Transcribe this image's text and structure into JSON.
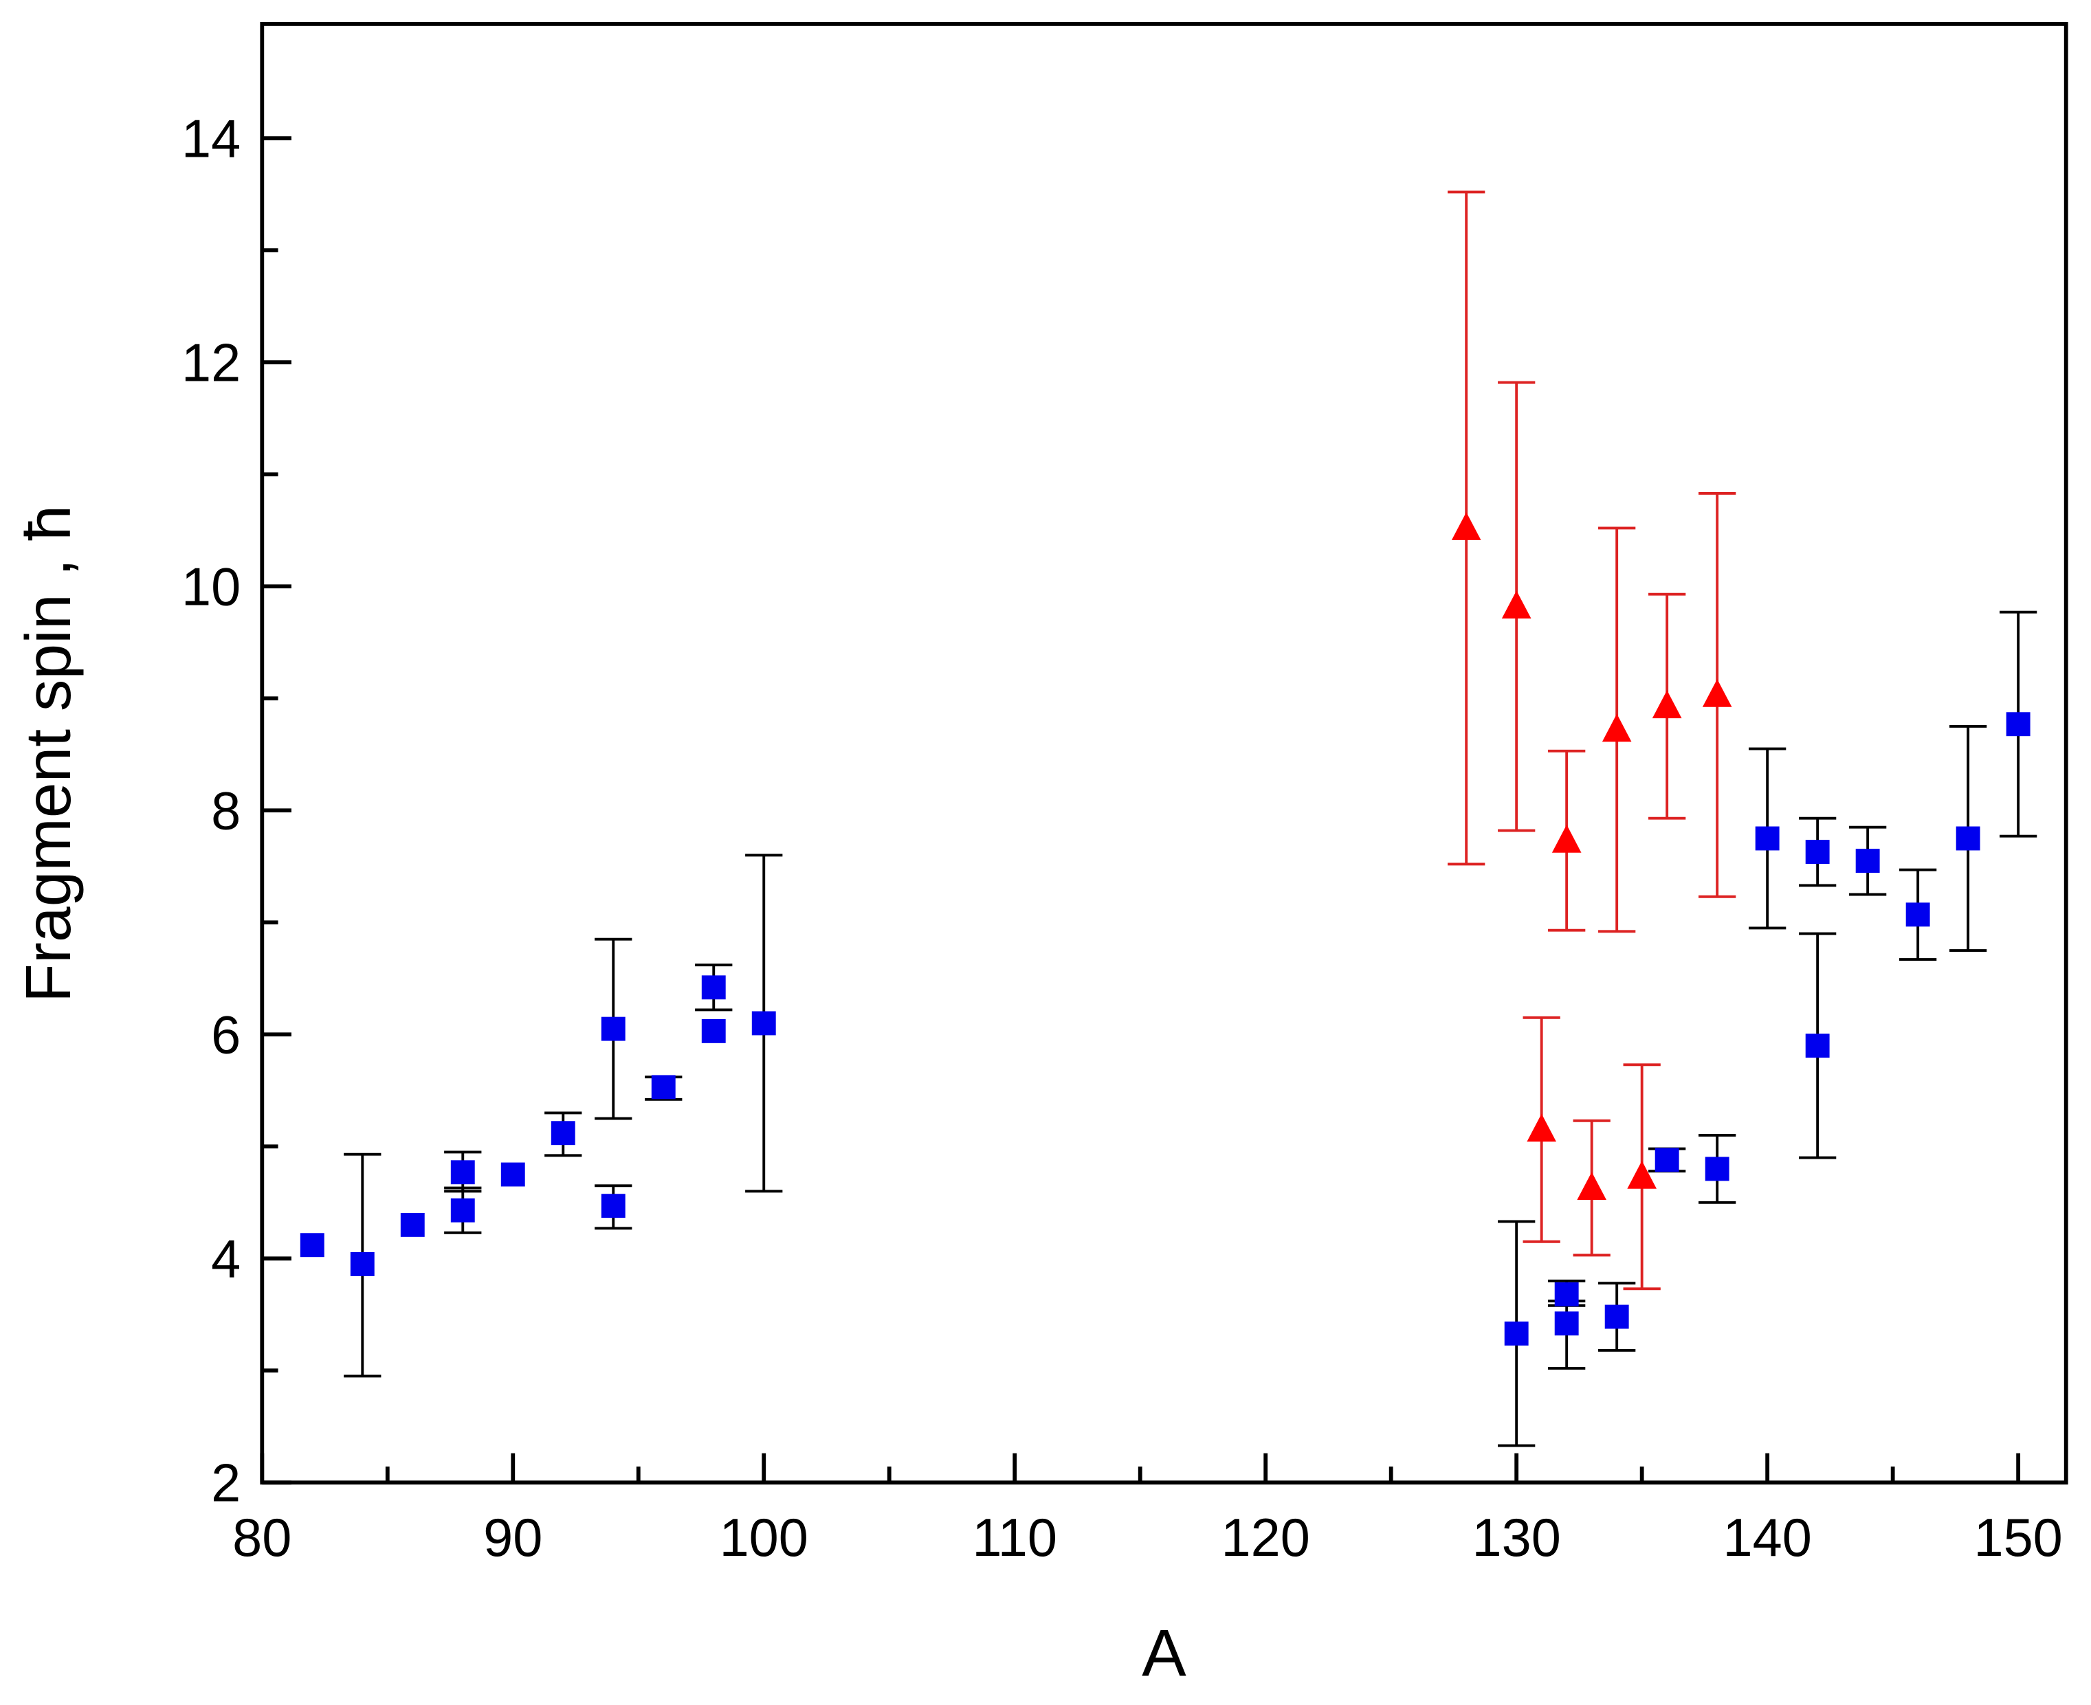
{
  "chart_data": {
    "type": "scatter",
    "title": "",
    "xlabel": "A",
    "ylabel": "Fragment spin , ħ",
    "xlim": [
      80,
      152
    ],
    "ylim": [
      2,
      15
    ],
    "xticks": [
      "80",
      "90",
      "100",
      "110",
      "120",
      "130",
      "140",
      "150"
    ],
    "yticks": [
      "2",
      "4",
      "6",
      "8",
      "10",
      "12",
      "14"
    ],
    "grid": false,
    "legend": "none",
    "series": [
      {
        "marker": "square",
        "color": "#0000ee",
        "errorbar_color": "#000000",
        "points": [
          {
            "x": 82,
            "y": 4.12
          },
          {
            "x": 84,
            "y": 3.95,
            "lo": 2.95,
            "hi": 4.93
          },
          {
            "x": 86,
            "y": 4.3
          },
          {
            "x": 88,
            "y": 4.77,
            "lo": 4.6,
            "hi": 4.95
          },
          {
            "x": 88,
            "y": 4.43,
            "lo": 4.23,
            "hi": 4.63
          },
          {
            "x": 90,
            "y": 4.75
          },
          {
            "x": 92,
            "y": 5.12,
            "lo": 4.92,
            "hi": 5.3
          },
          {
            "x": 94,
            "y": 6.05,
            "lo": 5.25,
            "hi": 6.85
          },
          {
            "x": 94,
            "y": 4.47,
            "lo": 4.27,
            "hi": 4.65
          },
          {
            "x": 96,
            "y": 5.53,
            "lo": 5.42,
            "hi": 5.62
          },
          {
            "x": 98,
            "y": 6.42,
            "lo": 6.22,
            "hi": 6.62
          },
          {
            "x": 98,
            "y": 6.03
          },
          {
            "x": 100,
            "y": 6.1,
            "lo": 4.6,
            "hi": 7.6
          },
          {
            "x": 130,
            "y": 3.33,
            "lo": 2.33,
            "hi": 4.33
          },
          {
            "x": 132,
            "y": 3.68,
            "lo": 3.58,
            "hi": 3.8
          },
          {
            "x": 132,
            "y": 3.42,
            "lo": 3.02,
            "hi": 3.62
          },
          {
            "x": 134,
            "y": 3.48,
            "lo": 3.18,
            "hi": 3.78
          },
          {
            "x": 136,
            "y": 4.88,
            "lo": 4.78,
            "hi": 4.98
          },
          {
            "x": 138,
            "y": 4.8,
            "lo": 4.5,
            "hi": 5.1
          },
          {
            "x": 140,
            "y": 7.75,
            "lo": 6.95,
            "hi": 8.55
          },
          {
            "x": 142,
            "y": 7.63,
            "lo": 7.33,
            "hi": 7.93
          },
          {
            "x": 142,
            "y": 5.9,
            "lo": 4.9,
            "hi": 6.9
          },
          {
            "x": 144,
            "y": 7.55,
            "lo": 7.25,
            "hi": 7.85
          },
          {
            "x": 146,
            "y": 7.07,
            "lo": 6.67,
            "hi": 7.47
          },
          {
            "x": 148,
            "y": 7.75,
            "lo": 6.75,
            "hi": 8.75
          },
          {
            "x": 150,
            "y": 8.77,
            "lo": 7.77,
            "hi": 9.77
          }
        ]
      },
      {
        "marker": "triangle",
        "color": "#ff0000",
        "errorbar_color": "#dd2222",
        "points": [
          {
            "x": 128,
            "y": 10.52,
            "lo": 7.52,
            "hi": 13.52
          },
          {
            "x": 130,
            "y": 9.82,
            "lo": 7.82,
            "hi": 11.82
          },
          {
            "x": 132,
            "y": 7.73,
            "lo": 6.93,
            "hi": 8.53
          },
          {
            "x": 134,
            "y": 8.72,
            "lo": 6.92,
            "hi": 10.52
          },
          {
            "x": 136,
            "y": 8.93,
            "lo": 7.93,
            "hi": 9.93
          },
          {
            "x": 138,
            "y": 9.03,
            "lo": 7.23,
            "hi": 10.83
          },
          {
            "x": 131,
            "y": 5.15,
            "lo": 4.15,
            "hi": 6.15
          },
          {
            "x": 133,
            "y": 4.63,
            "lo": 4.03,
            "hi": 5.23
          },
          {
            "x": 135,
            "y": 4.73,
            "lo": 3.73,
            "hi": 5.73
          }
        ]
      }
    ]
  }
}
